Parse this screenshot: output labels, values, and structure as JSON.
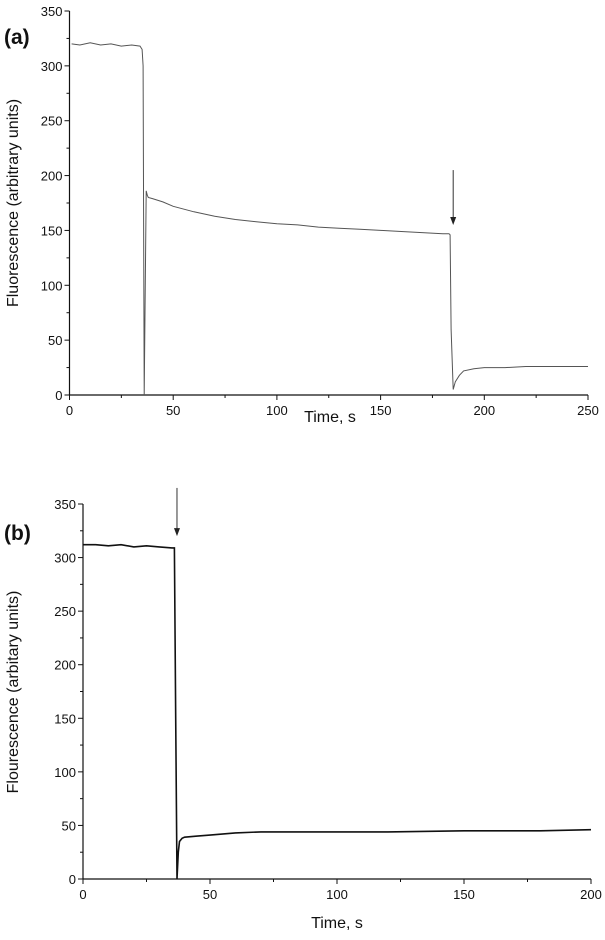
{
  "chart_data": [
    {
      "type": "line",
      "panel_label": "(a)",
      "xlabel": "Time, s",
      "ylabel": "Fluorescence (arbitrary units)",
      "xlim": [
        0,
        250
      ],
      "ylim": [
        0,
        350
      ],
      "xticks": [
        0,
        50,
        100,
        150,
        200,
        250
      ],
      "yticks": [
        0,
        50,
        100,
        150,
        200,
        250,
        300,
        350
      ],
      "grid": false,
      "line_color": "#555555",
      "annotation": {
        "type": "arrow",
        "x": 185,
        "y_from": 205,
        "y_to": 155
      },
      "series": [
        {
          "name": "fluorescence",
          "x": [
            1,
            5,
            10,
            15,
            20,
            25,
            30,
            34,
            35,
            35.5,
            36,
            37,
            37.5,
            38,
            40,
            45,
            50,
            60,
            70,
            80,
            90,
            100,
            110,
            120,
            130,
            140,
            150,
            160,
            170,
            180,
            183,
            183.5,
            184,
            185,
            186,
            188,
            190,
            195,
            200,
            210,
            220,
            230,
            240,
            250
          ],
          "y": [
            320,
            319,
            321,
            319,
            320,
            318,
            319,
            318,
            315,
            300,
            0,
            186,
            182,
            180,
            179,
            176,
            172,
            167,
            163,
            160,
            158,
            156,
            155,
            153,
            152,
            151,
            150,
            149,
            148,
            147,
            147,
            146,
            60,
            5,
            12,
            18,
            22,
            24,
            25,
            25,
            26,
            26,
            26,
            26
          ]
        }
      ]
    },
    {
      "type": "line",
      "panel_label": "(b)",
      "xlabel": "Time, s",
      "ylabel": "Flourescence (arbitary units)",
      "xlim": [
        0,
        200
      ],
      "ylim": [
        0,
        350
      ],
      "xticks": [
        0,
        50,
        100,
        150,
        200
      ],
      "yticks": [
        0,
        50,
        100,
        150,
        200,
        250,
        300,
        350
      ],
      "grid": false,
      "line_color": "#111111",
      "annotation": {
        "type": "arrow",
        "x": 37,
        "y_from": 365,
        "y_to": 320
      },
      "series": [
        {
          "name": "fluorescence",
          "x": [
            0,
            5,
            10,
            15,
            20,
            25,
            30,
            35,
            36,
            36.5,
            37,
            37.5,
            38,
            39,
            40,
            45,
            50,
            60,
            70,
            80,
            100,
            120,
            150,
            180,
            200
          ],
          "y": [
            312,
            312,
            311,
            312,
            310,
            311,
            310,
            309,
            309,
            150,
            0,
            25,
            35,
            38,
            39,
            40,
            41,
            43,
            44,
            44,
            44,
            44,
            45,
            45,
            46
          ]
        }
      ]
    }
  ]
}
